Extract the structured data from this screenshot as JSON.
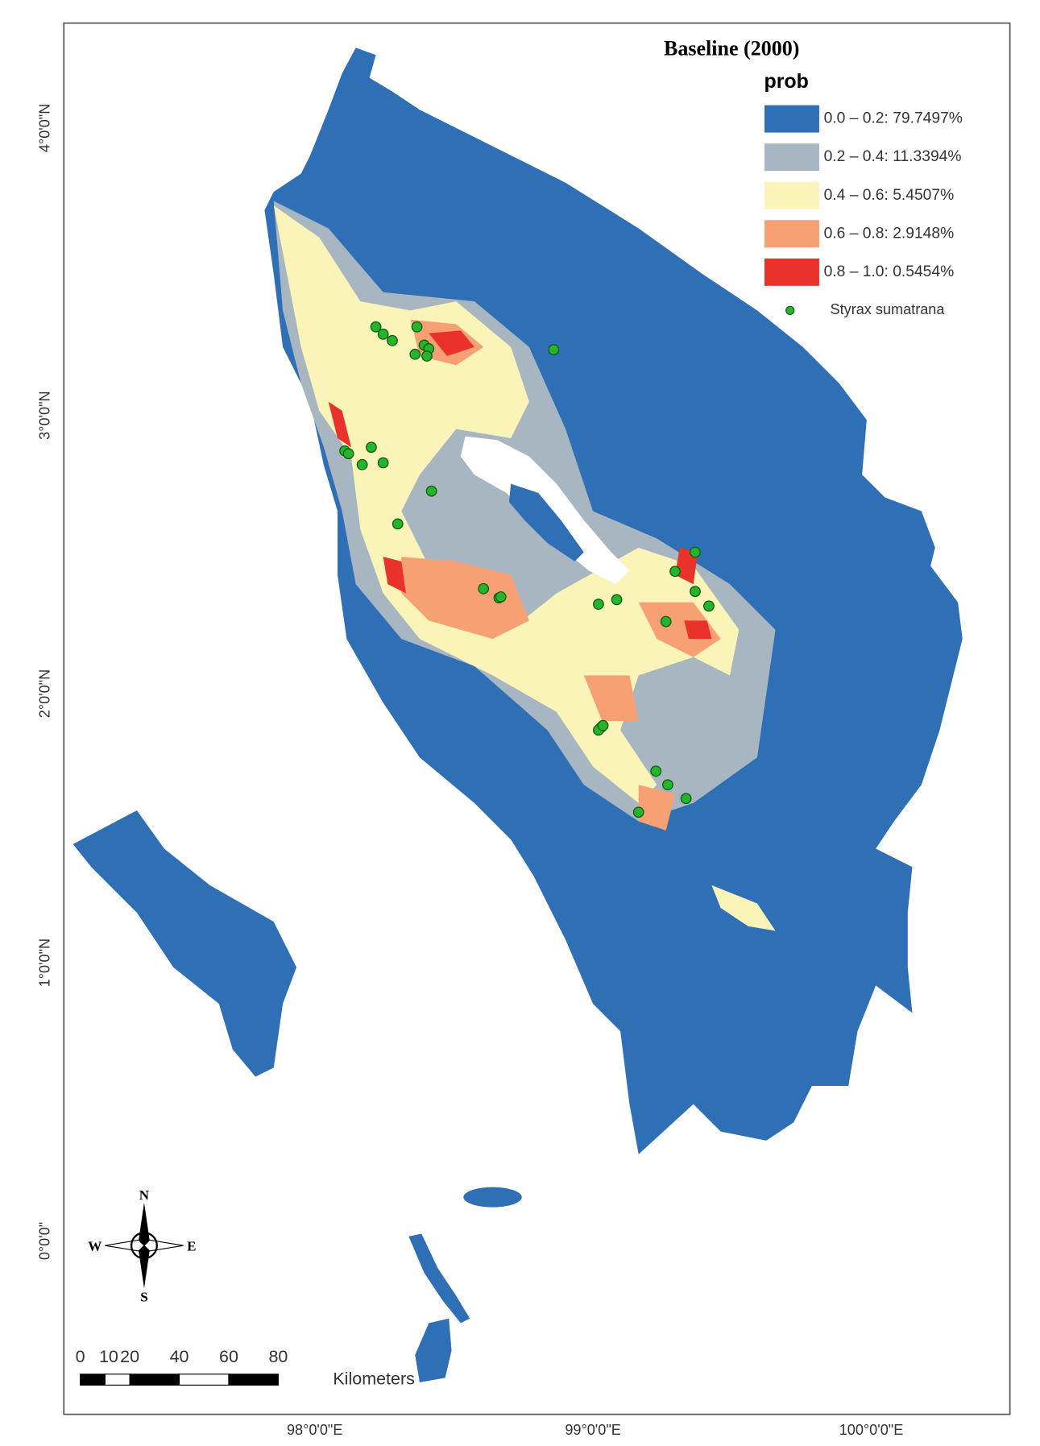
{
  "title": "Baseline (2000)",
  "legend": {
    "title": "prob",
    "items": [
      {
        "label": "0.0 – 0.2: 79.7497%",
        "color": "#2f6fb5"
      },
      {
        "label": "0.2 – 0.4: 11.3394%",
        "color": "#a8b6c2"
      },
      {
        "label": "0.4 – 0.6: 5.4507%",
        "color": "#fbf4b8"
      },
      {
        "label": "0.6 – 0.8: 2.9148%",
        "color": "#f7a073"
      },
      {
        "label": "0.8 – 1.0: 0.5454%",
        "color": "#e8322a"
      }
    ],
    "points_label": "Styrax sumatrana",
    "points_color": "#25b52b"
  },
  "latitude_labels": [
    "4°0'0\"N",
    "3°0'0\"N",
    "2°0'0\"N",
    "1°0'0\"N",
    "0°0'0\""
  ],
  "longitude_labels": [
    "98°0'0\"E",
    "99°0'0\"E",
    "100°0'0\"E"
  ],
  "compass": {
    "n": "N",
    "e": "E",
    "s": "S",
    "w": "W"
  },
  "scale_bar": {
    "ticks": [
      0,
      10,
      20,
      40,
      60,
      80
    ],
    "unit": "Kilometers"
  }
}
